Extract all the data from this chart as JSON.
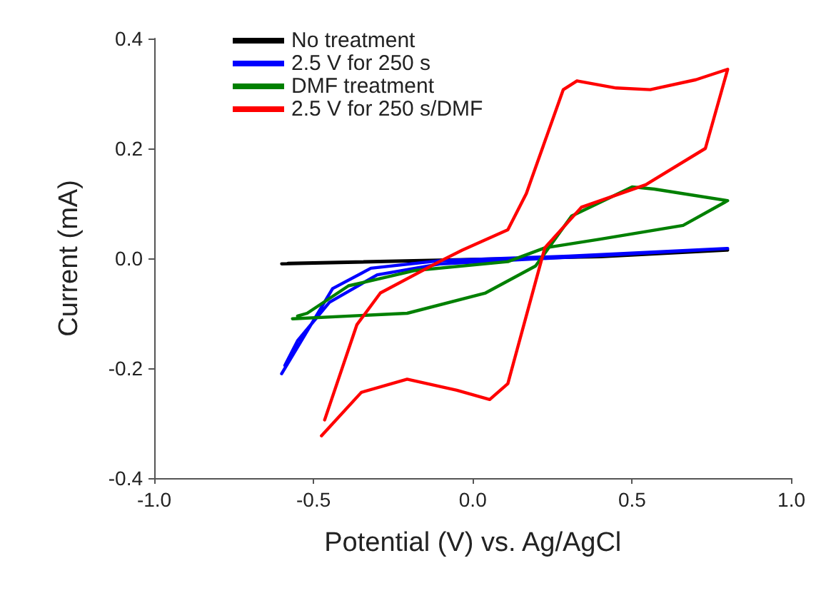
{
  "chart_data": {
    "type": "line",
    "xlabel": "Potential (V) vs. Ag/AgCl",
    "ylabel": "Current (mA)",
    "xlim": [
      -1,
      1
    ],
    "xticks": [
      {
        "value": -1,
        "label": "-1.0"
      },
      -0.5,
      {
        "value": 0,
        "label": "0.0"
      },
      0.5,
      {
        "value": 1,
        "label": "1.0"
      }
    ],
    "ylim": [
      -0.4,
      0.4
    ],
    "yticks": [
      -0.4,
      -0.2,
      {
        "value": 0,
        "label": "0.0"
      },
      0.2,
      0.4
    ],
    "grid": false,
    "legend": "top left",
    "marker": "none",
    "line_style": "solid",
    "series": [
      {
        "name": "No treatment",
        "color": "#000000",
        "x": [
          -0.6,
          -0.2,
          0.2,
          0.8,
          0.4,
          0,
          -0.58
        ],
        "values": [
          -0.01,
          -0.005,
          0,
          0.015,
          0.003,
          -0.002,
          -0.009
        ]
      },
      {
        "name": "2.5 V for 250 s",
        "color": "#0000ff",
        "x": [
          -0.6,
          -0.44,
          -0.32,
          -0.1,
          0.3,
          0.8,
          0.3,
          -0.1,
          -0.3,
          -0.45,
          -0.55,
          -0.59
        ],
        "values": [
          -0.21,
          -0.055,
          -0.018,
          -0.004,
          0.004,
          0.018,
          0.002,
          -0.01,
          -0.03,
          -0.08,
          -0.15,
          -0.195
        ]
      },
      {
        "name": "DMF treatment",
        "color": "#008000",
        "x": [
          -0.566,
          -0.206,
          0.04,
          0.197,
          0.31,
          0.5,
          0.57,
          0.8,
          0.66,
          0.4,
          0.226,
          0.11,
          -0.18,
          -0.39,
          -0.52,
          -0.55
        ],
        "values": [
          -0.11,
          -0.1,
          -0.063,
          -0.014,
          0.077,
          0.13,
          0.126,
          0.105,
          0.06,
          0.035,
          0.019,
          -0.006,
          -0.022,
          -0.05,
          -0.1,
          -0.105
        ]
      },
      {
        "name": "2.5 V for 250 s/DMF",
        "color": "#ff0000",
        "x": [
          -0.465,
          -0.364,
          -0.29,
          -0.105,
          -0.033,
          0.11,
          0.168,
          0.284,
          0.327,
          0.45,
          0.557,
          0.7,
          0.8,
          0.73,
          0.543,
          0.341,
          0.226,
          0.11,
          0.053,
          -0.05,
          -0.206,
          -0.35,
          -0.475
        ],
        "values": [
          -0.294,
          -0.121,
          -0.063,
          -0.006,
          0.015,
          0.052,
          0.118,
          0.307,
          0.323,
          0.31,
          0.307,
          0.325,
          0.344,
          0.2,
          0.134,
          0.093,
          0.019,
          -0.228,
          -0.257,
          -0.24,
          -0.22,
          -0.244,
          -0.323
        ]
      }
    ]
  }
}
